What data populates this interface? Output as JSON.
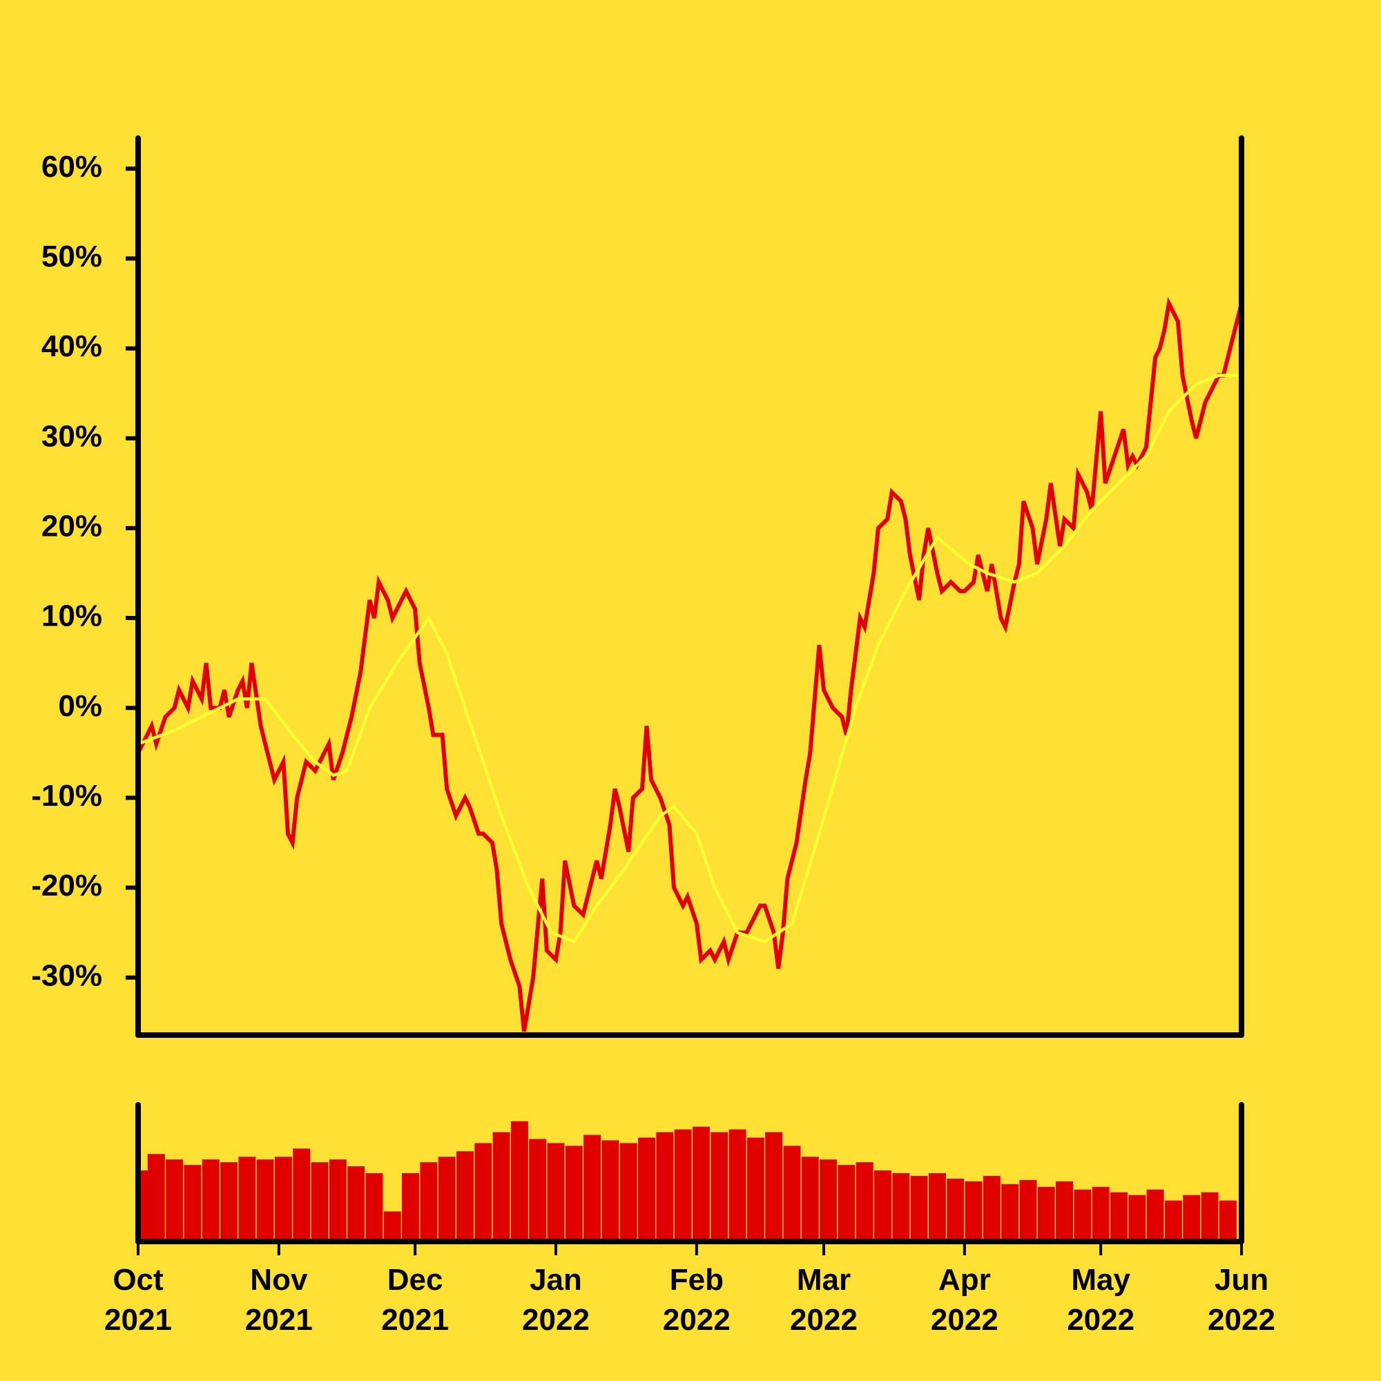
{
  "chart_data": {
    "type": "line",
    "background": "#ffe135",
    "xlim": [
      0,
      243
    ],
    "ylim": [
      -36.4,
      63.4
    ],
    "yticks": [
      {
        "value": -30,
        "label": "-30%"
      },
      {
        "value": -20,
        "label": "-20%"
      },
      {
        "value": -10,
        "label": "-10%"
      },
      {
        "value": 0,
        "label": "0%"
      },
      {
        "value": 10,
        "label": "10%"
      },
      {
        "value": 20,
        "label": "20%"
      },
      {
        "value": 30,
        "label": "30%"
      },
      {
        "value": 40,
        "label": "40%"
      },
      {
        "value": 50,
        "label": "50%"
      },
      {
        "value": 60,
        "label": "60%"
      }
    ],
    "xticks": [
      {
        "value": 0,
        "label": "Oct\n2021"
      },
      {
        "value": 31,
        "label": "Nov\n2021"
      },
      {
        "value": 61,
        "label": "Dec\n2021"
      },
      {
        "value": 92,
        "label": "Jan\n2022"
      },
      {
        "value": 123,
        "label": "Feb\n2022"
      },
      {
        "value": 151,
        "label": "Mar\n2022"
      },
      {
        "value": 182,
        "label": "Apr\n2022"
      },
      {
        "value": 212,
        "label": "May\n2022"
      },
      {
        "value": 243,
        "label": "Jun\n2022"
      }
    ],
    "series": [
      {
        "color": "#e00000",
        "x": [
          0,
          2,
          3,
          4,
          6,
          8,
          9,
          11,
          12,
          14,
          15,
          16,
          18,
          19,
          20,
          22,
          23,
          24,
          25,
          27,
          28,
          30,
          32,
          33,
          34,
          35,
          37,
          39,
          40,
          42,
          43,
          45,
          47,
          49,
          51,
          52,
          53,
          55,
          56,
          58,
          59,
          61,
          62,
          64,
          65,
          67,
          68,
          70,
          72,
          73,
          75,
          76,
          78,
          79,
          80,
          82,
          84,
          85,
          87,
          89,
          90,
          92,
          93,
          94,
          96,
          98,
          99,
          101,
          102,
          104,
          105,
          106,
          108,
          109,
          111,
          112,
          113,
          115,
          117,
          118,
          120,
          121,
          123,
          124,
          126,
          127,
          129,
          130,
          132,
          134,
          135,
          137,
          138,
          140,
          141,
          142,
          143,
          145,
          147,
          148,
          150,
          151,
          153,
          155,
          156,
          157,
          159,
          160,
          162,
          163,
          165,
          166,
          168,
          169,
          170,
          172,
          173,
          174,
          176,
          177,
          179,
          181,
          182,
          184,
          185,
          187,
          188,
          190,
          191,
          193,
          194,
          195,
          197,
          198,
          200,
          201,
          203,
          204,
          206,
          207,
          209,
          210,
          212,
          213,
          215,
          217,
          218,
          219,
          220,
          222,
          224,
          225,
          226,
          227,
          229,
          230,
          232,
          233,
          235,
          236,
          238,
          239,
          241,
          243
        ],
        "values": [
          -5,
          -3,
          -2,
          -4,
          -1,
          0,
          2,
          0,
          3,
          1,
          5,
          0,
          0,
          2,
          -1,
          2,
          3,
          0,
          5,
          -2,
          -4,
          -8,
          -6,
          -14,
          -15,
          -10,
          -6,
          -7,
          -6,
          -4,
          -8,
          -5,
          -1,
          4,
          12,
          10,
          14,
          12,
          10,
          12,
          13,
          11,
          5,
          0,
          -3,
          -3,
          -9,
          -12,
          -10,
          -11,
          -14,
          -14,
          -15,
          -18,
          -24,
          -28,
          -31,
          -36,
          -30,
          -19,
          -27,
          -28,
          -25,
          -17,
          -22,
          -23,
          -21,
          -17,
          -19,
          -13,
          -9,
          -11,
          -16,
          -10,
          -9,
          -2,
          -8,
          -10,
          -13,
          -20,
          -22,
          -21,
          -24,
          -28,
          -27,
          -28,
          -26,
          -28,
          -25,
          -25,
          -24,
          -22,
          -22,
          -25,
          -29,
          -25,
          -19,
          -15,
          -8,
          -5,
          7,
          2,
          0,
          -1,
          -3,
          2,
          10,
          9,
          15,
          20,
          21,
          24,
          23,
          21,
          17,
          12,
          17,
          20,
          15,
          13,
          14,
          13,
          13,
          14,
          17,
          13,
          16,
          10,
          9,
          14,
          16,
          23,
          20,
          16,
          21,
          25,
          18,
          21,
          20,
          26,
          24,
          22,
          33,
          25,
          28,
          31,
          27,
          28,
          27,
          29,
          39,
          40,
          42,
          45,
          43,
          37,
          32,
          30,
          34,
          35,
          37,
          37,
          41,
          45
        ]
      },
      {
        "color": "#ffff33",
        "x": [
          0,
          8,
          16,
          22,
          28,
          34,
          39,
          43,
          46,
          51,
          57,
          64,
          68,
          74,
          80,
          86,
          91,
          96,
          101,
          107,
          115,
          118,
          123,
          127,
          132,
          138,
          144,
          150,
          154,
          158,
          163,
          169,
          176,
          183,
          187,
          193,
          198,
          204,
          210,
          216,
          222,
          227,
          233,
          238,
          243
        ],
        "values": [
          -4,
          -2.5,
          -0.5,
          1,
          1,
          -3,
          -6,
          -7.5,
          -7,
          0,
          5,
          10,
          6,
          -3,
          -12,
          -20,
          -25,
          -26,
          -22,
          -18,
          -12,
          -11,
          -14,
          -20,
          -25,
          -26,
          -24,
          -14,
          -7,
          0,
          7,
          13,
          19,
          16,
          15,
          14,
          15,
          18,
          22,
          25,
          28,
          33,
          36,
          37,
          37
        ]
      }
    ],
    "volume": {
      "color": "#e00000",
      "ylim": [
        0,
        100
      ],
      "x": [
        0,
        4,
        8,
        12,
        16,
        20,
        24,
        28,
        32,
        36,
        40,
        44,
        48,
        52,
        56,
        60,
        64,
        68,
        72,
        76,
        80,
        84,
        88,
        92,
        96,
        100,
        104,
        108,
        112,
        116,
        120,
        124,
        128,
        132,
        136,
        140,
        144,
        148,
        152,
        156,
        160,
        164,
        168,
        172,
        176,
        180,
        184,
        188,
        192,
        196,
        200,
        204,
        208,
        212,
        216,
        220,
        224,
        228,
        232,
        236,
        240
      ],
      "values": [
        52,
        64,
        60,
        56,
        60,
        58,
        62,
        60,
        62,
        68,
        58,
        60,
        55,
        50,
        22,
        50,
        58,
        62,
        66,
        72,
        80,
        88,
        75,
        72,
        70,
        78,
        74,
        72,
        76,
        80,
        82,
        84,
        80,
        82,
        76,
        80,
        70,
        62,
        60,
        56,
        58,
        52,
        50,
        48,
        50,
        46,
        44,
        48,
        42,
        45,
        40,
        44,
        38,
        40,
        36,
        34,
        38,
        30,
        34,
        36,
        30
      ]
    }
  }
}
